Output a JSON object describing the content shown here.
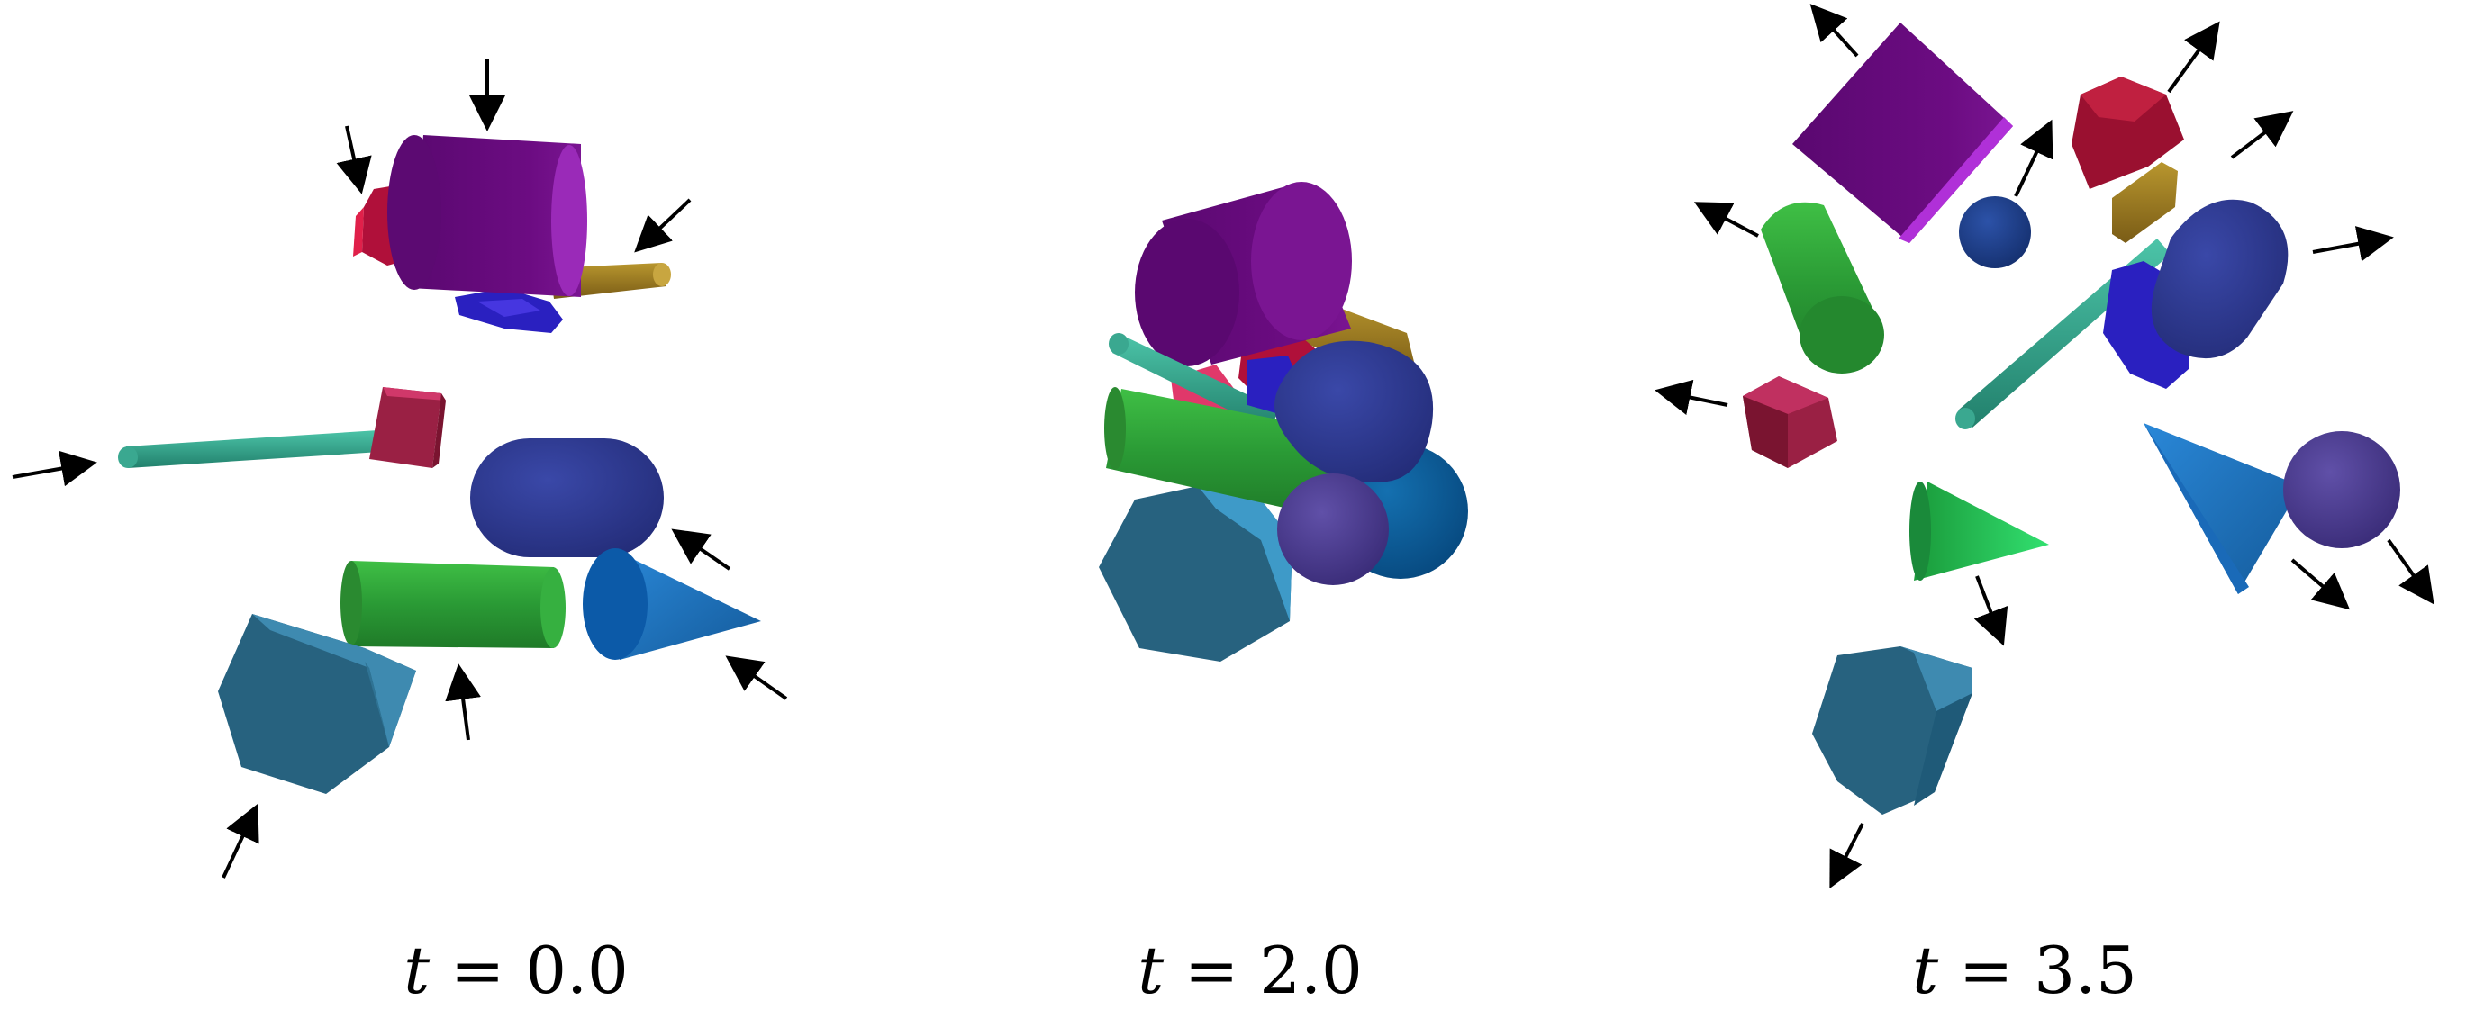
{
  "panels": [
    {
      "time_var": "t",
      "equals": "=",
      "time_value": "0.0",
      "state": "converging"
    },
    {
      "time_var": "t",
      "equals": "=",
      "time_value": "2.0",
      "state": "collision"
    },
    {
      "time_var": "t",
      "equals": "=",
      "time_value": "3.5",
      "state": "dispersing"
    }
  ],
  "objects": [
    {
      "name": "purple-cylinder",
      "color": "#6a0a80"
    },
    {
      "name": "red-hexagonal-prism",
      "color": "#b0103a"
    },
    {
      "name": "blue-hexagonal-prism",
      "color": "#2a20c0"
    },
    {
      "name": "gold-rod",
      "color": "#9a7a20"
    },
    {
      "name": "teal-rod",
      "color": "#2fa08a"
    },
    {
      "name": "maroon-cube",
      "color": "#9a2040"
    },
    {
      "name": "indigo-capsule",
      "color": "#2e3a90"
    },
    {
      "name": "green-cylinder",
      "color": "#2a9a35"
    },
    {
      "name": "blue-cone",
      "color": "#1a70c0"
    },
    {
      "name": "steel-blue-hexagonal-prism",
      "color": "#2a6a8a"
    },
    {
      "name": "violet-sphere",
      "color": "#4a3a8a"
    },
    {
      "name": "navy-sphere",
      "color": "#1e3f90"
    },
    {
      "name": "ocean-blue-sphere",
      "color": "#0a5a9a"
    }
  ]
}
